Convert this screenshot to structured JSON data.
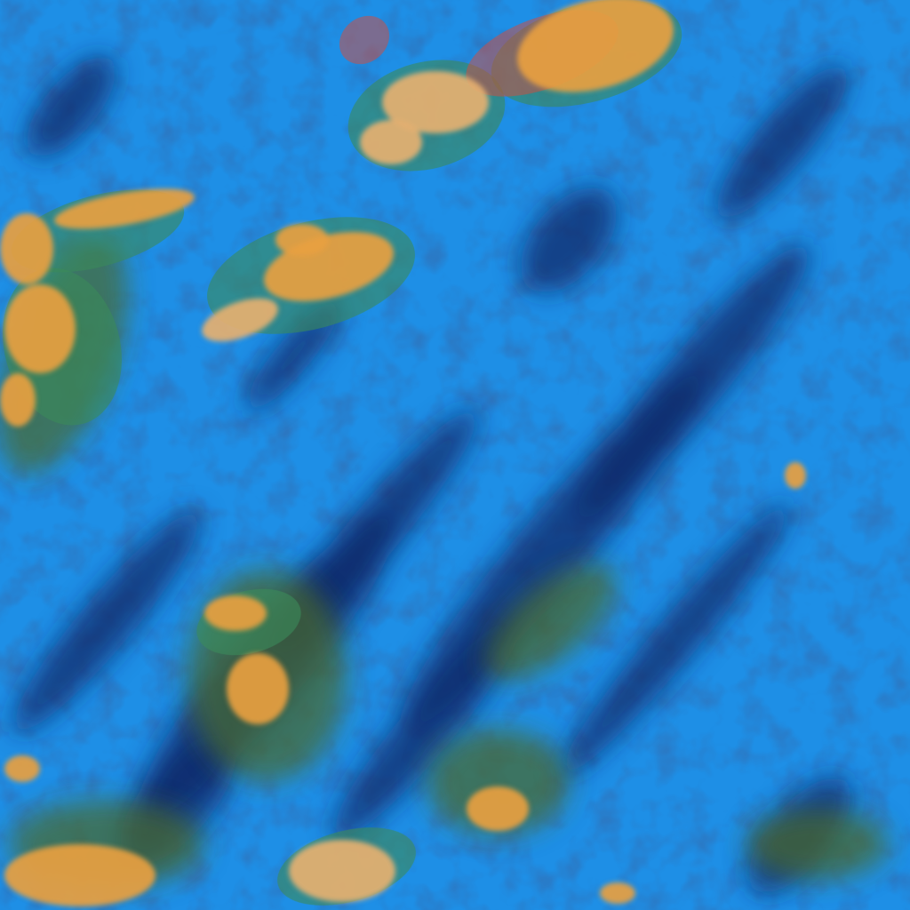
{
  "image": {
    "palette": {
      "background": "#1e8fe6",
      "streak": "#0a2a6a",
      "streak_light": "#1450b0",
      "cloud": "#e8a040",
      "cloud_light": "#e6b070",
      "cloud_edge": "#3a8a5a",
      "cloud_rim": "#d84a3a",
      "green_mass": "#4a6a2a"
    }
  }
}
